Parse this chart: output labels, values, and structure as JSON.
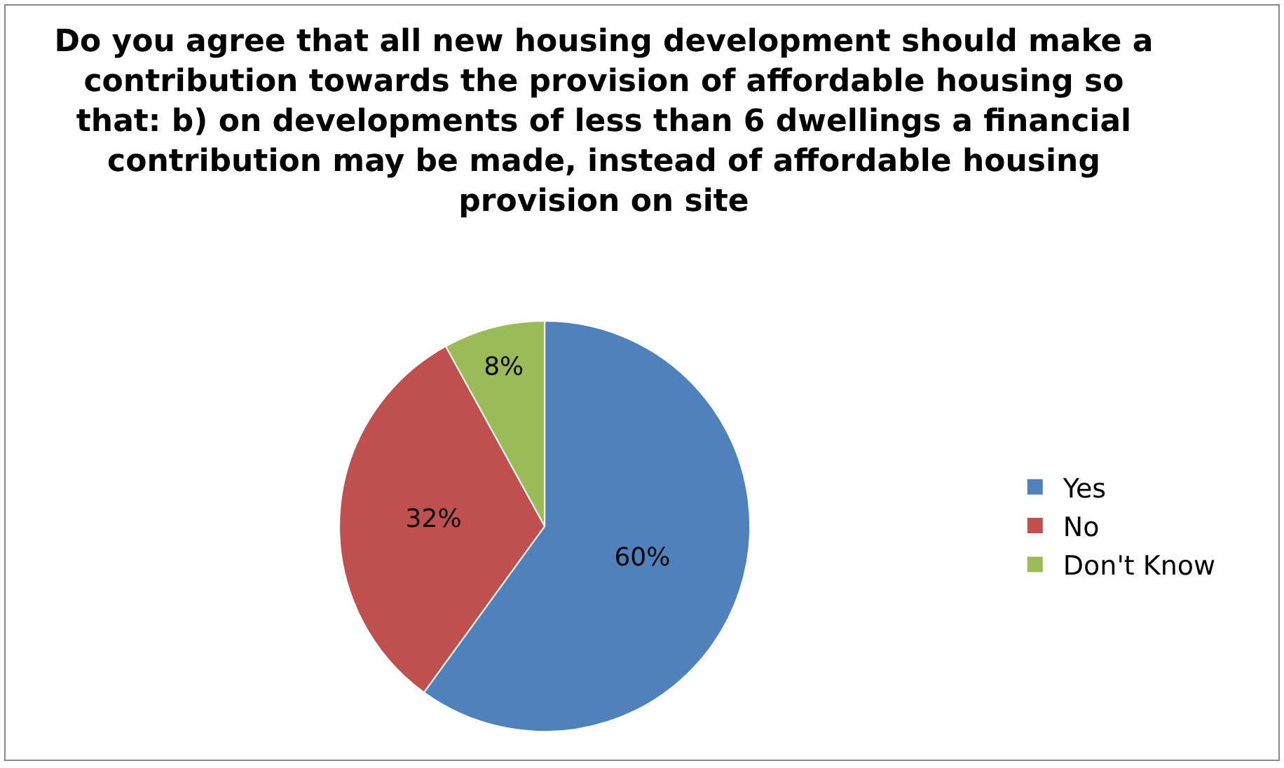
{
  "chart_data": {
    "type": "pie",
    "title": "Do you agree that all new housing development should make a contribution towards the provision of affordable housing so that: b) on developments of less than 6 dwellings a financial contribution may be made, instead of affordable housing provision on site",
    "categories": [
      "Yes",
      "No",
      "Don't Know"
    ],
    "values": [
      60,
      32,
      8
    ],
    "value_labels": [
      "60%",
      "32%",
      "8%"
    ],
    "colors": [
      "#4f81bd",
      "#c0504d",
      "#9bbb59"
    ],
    "legend": "right"
  }
}
